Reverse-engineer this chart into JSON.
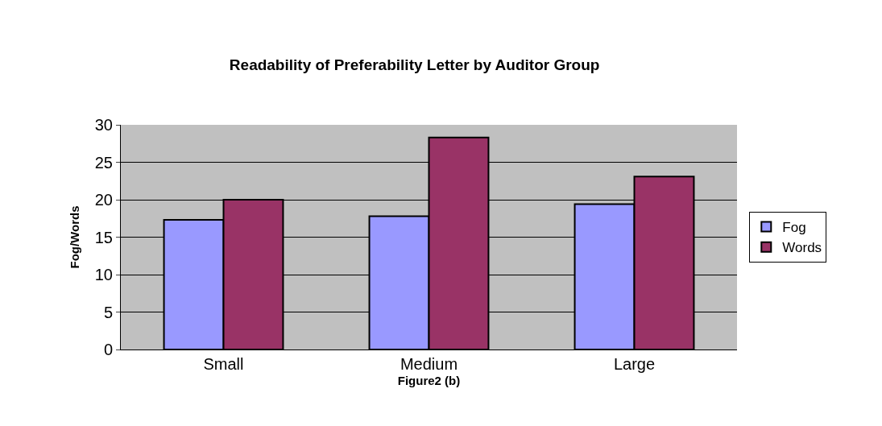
{
  "chart_data": {
    "type": "bar",
    "title": "Readability of Preferability Letter by Auditor Group",
    "xlabel": "Figure2 (b)",
    "ylabel": "Fog/Words",
    "categories": [
      "Small",
      "Medium",
      "Large"
    ],
    "series": [
      {
        "name": "Fog",
        "color": "#9999ff",
        "values": [
          17.3,
          17.8,
          19.4
        ]
      },
      {
        "name": "Words",
        "color": "#993366",
        "values": [
          20.0,
          28.3,
          23.1
        ]
      }
    ],
    "ylim": [
      0,
      30
    ],
    "yticks": [
      0,
      5,
      10,
      15,
      20,
      25,
      30
    ],
    "grid": "y",
    "legend": "right"
  }
}
